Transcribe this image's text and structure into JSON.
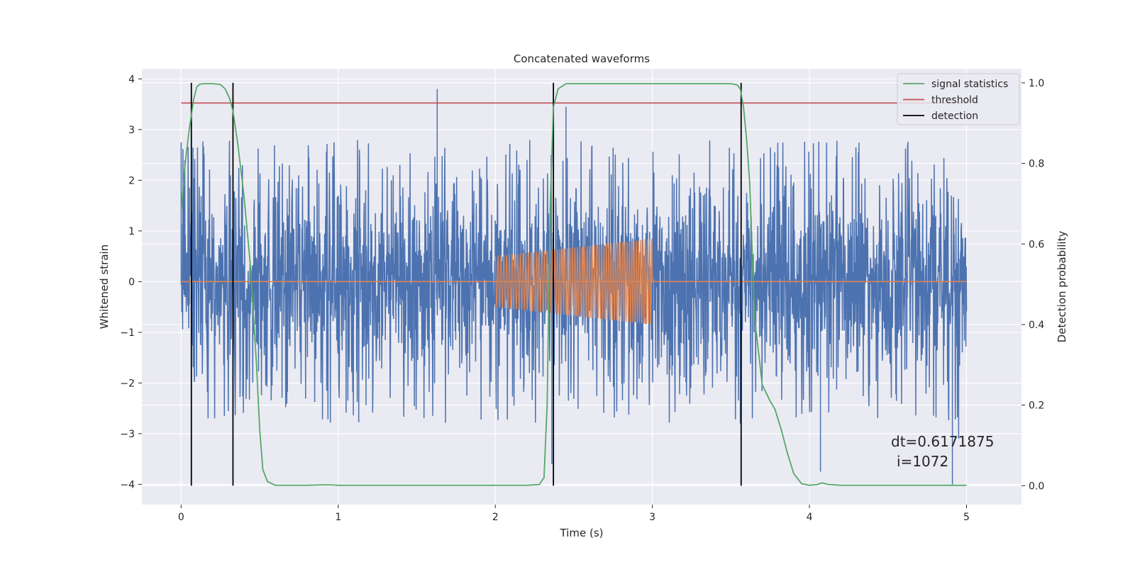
{
  "chart_data": {
    "type": "line",
    "title": "Concatenated waveforms",
    "xlabel": "Time (s)",
    "ylabel": "Whitened strain",
    "ylabel_right": "Detection probability",
    "xlim": [
      -0.25,
      5.35
    ],
    "ylim": [
      -4.4,
      4.2
    ],
    "ylim_right": [
      -0.047,
      1.035
    ],
    "x_ticks": [
      0,
      1,
      2,
      3,
      4,
      5
    ],
    "x_tick_labels": [
      "0",
      "1",
      "2",
      "3",
      "4",
      "5"
    ],
    "y_ticks": [
      -4,
      -3,
      -2,
      -1,
      0,
      1,
      2,
      3,
      4
    ],
    "y_tick_labels": [
      "−4",
      "−3",
      "−2",
      "−1",
      "0",
      "1",
      "2",
      "3",
      "4"
    ],
    "y_right_ticks": [
      0.0,
      0.2,
      0.4,
      0.6,
      0.8,
      1.0
    ],
    "y_right_tick_labels": [
      "0.0",
      "0.2",
      "0.4",
      "0.6",
      "0.8",
      "1.0"
    ],
    "grid": true,
    "legend_position": "top-right",
    "colors": {
      "strain": "#4c72b0",
      "template": "#dd8452",
      "signal_statistics": "#55a868",
      "threshold": "#c44e52",
      "detection": "#000000",
      "axes_bg": "#eaeaf2",
      "grid": "#ffffff"
    },
    "series": [
      {
        "name": "",
        "axis": "left",
        "description_kind": "noise",
        "x_range": [
          0,
          5
        ],
        "core_amplitude": 0.7,
        "peak_amplitude": 2.8,
        "notable_peaks": [
          {
            "x": 0.0,
            "y": 2.75
          },
          {
            "x": 1.63,
            "y": 3.8
          },
          {
            "x": 2.45,
            "y": 3.45
          },
          {
            "x": 2.36,
            "y": -3.6
          },
          {
            "x": 4.07,
            "y": -3.75
          },
          {
            "x": 4.91,
            "y": -4.0
          },
          {
            "x": 4.95,
            "y": -3.1
          },
          {
            "x": 3.56,
            "y": -2.8
          }
        ]
      },
      {
        "name": "",
        "axis": "left",
        "description_kind": "chirp",
        "x_range": [
          2.0,
          3.0
        ],
        "amp_start": 0.5,
        "amp_end": 0.85,
        "cycles": 55
      },
      {
        "name": "signal statistics",
        "axis": "right",
        "x": [
          0.0,
          0.02,
          0.05,
          0.08,
          0.1,
          0.12,
          0.15,
          0.2,
          0.25,
          0.28,
          0.31,
          0.33,
          0.36,
          0.4,
          0.44,
          0.48,
          0.5,
          0.52,
          0.55,
          0.6,
          0.8,
          0.9,
          0.95,
          1.0,
          1.5,
          2.0,
          2.2,
          2.28,
          2.31,
          2.33,
          2.35,
          2.37,
          2.4,
          2.45,
          2.6,
          3.0,
          3.4,
          3.5,
          3.54,
          3.56,
          3.58,
          3.6,
          3.62,
          3.65,
          3.7,
          3.75,
          3.78,
          3.82,
          3.86,
          3.9,
          3.95,
          4.0,
          4.05,
          4.08,
          4.12,
          4.2,
          4.5,
          5.0
        ],
        "y": [
          0.68,
          0.78,
          0.88,
          0.96,
          0.99,
          0.997,
          0.998,
          0.998,
          0.996,
          0.985,
          0.96,
          0.93,
          0.85,
          0.72,
          0.55,
          0.3,
          0.14,
          0.04,
          0.01,
          0.001,
          0.001,
          0.002,
          0.002,
          0.001,
          0.001,
          0.001,
          0.001,
          0.003,
          0.02,
          0.2,
          0.7,
          0.94,
          0.985,
          0.998,
          0.998,
          0.998,
          0.998,
          0.998,
          0.995,
          0.985,
          0.94,
          0.86,
          0.75,
          0.42,
          0.25,
          0.21,
          0.19,
          0.14,
          0.08,
          0.03,
          0.005,
          0.001,
          0.003,
          0.007,
          0.003,
          0.001,
          0.001,
          0.001
        ]
      },
      {
        "name": "threshold",
        "axis": "right",
        "x": [
          0,
          5
        ],
        "y": [
          0.95,
          0.95
        ]
      },
      {
        "name": "detection",
        "axis": "right",
        "type": "vlines",
        "x": [
          0.065,
          0.33,
          2.37,
          3.565
        ],
        "y_range": [
          0.0,
          1.0
        ]
      }
    ],
    "template_baseline": {
      "x": [
        0,
        5
      ],
      "y": [
        0,
        0
      ]
    },
    "annotation": {
      "line1": "dt=0.6171875",
      "line2": "i=1072"
    }
  }
}
